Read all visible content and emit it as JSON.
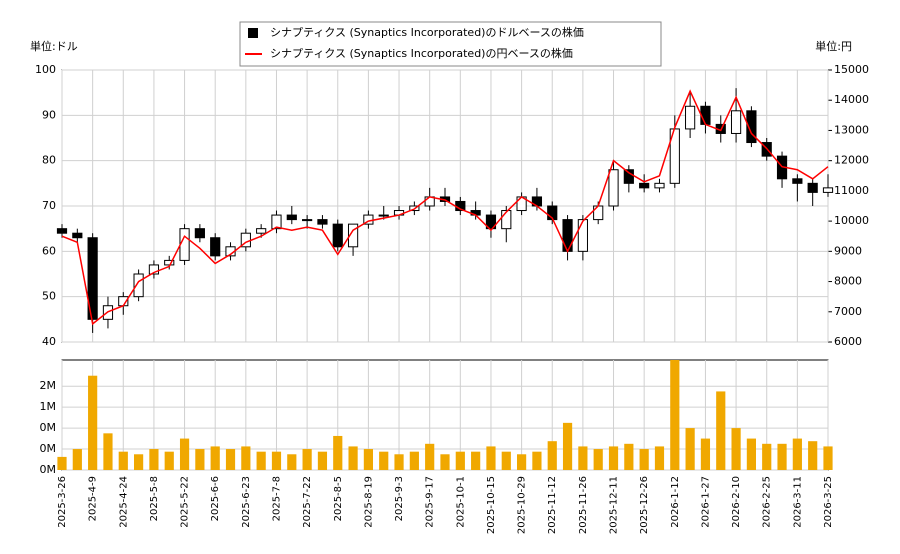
{
  "chart_data": {
    "type": "candlestick",
    "y_unit_label": "単位:ドル",
    "y2_unit_label": "単位:円",
    "categories": [
      "2025-3-26",
      null,
      "2025-4-9",
      null,
      "2025-4-24",
      null,
      "2025-5-8",
      null,
      "2025-5-22",
      null,
      "2025-6-6",
      null,
      "2025-6-23",
      null,
      "2025-7-8",
      null,
      "2025-7-22",
      null,
      "2025-8-5",
      null,
      "2025-8-19",
      null,
      "2025-9-3",
      null,
      "2025-9-17",
      null,
      "2025-10-1",
      null,
      "2025-10-15",
      null,
      "2025-10-29",
      null,
      "2025-11-12",
      null,
      "2025-11-26",
      null,
      "2025-12-11",
      null,
      "2025-12-26",
      null,
      "2026-1-12",
      null,
      "2026-1-27",
      null,
      "2026-2-10",
      null,
      "2026-2-25",
      null,
      "2026-3-11",
      null,
      "2026-3-25"
    ],
    "ylim": [
      40,
      100
    ],
    "yticks": [
      40,
      50,
      60,
      70,
      80,
      90,
      100
    ],
    "y2lim": [
      6000,
      15000
    ],
    "y2ticks": [
      6000,
      7000,
      8000,
      9000,
      10000,
      11000,
      12000,
      13000,
      14000,
      15000
    ],
    "grid": true,
    "series": [
      {
        "name": "シナプティクス (Synaptics Incorporated)のドルベースの株価",
        "color": "#000000",
        "open": [
          65,
          64,
          63,
          45,
          48,
          50,
          55,
          57,
          58,
          65,
          63,
          59,
          61,
          64,
          65,
          68,
          67,
          67,
          66,
          61,
          66,
          68,
          68,
          69,
          70,
          72,
          71,
          69,
          68,
          65,
          69,
          72,
          70,
          67,
          60,
          67,
          70,
          78,
          75,
          74,
          75,
          87,
          92,
          88,
          86,
          91,
          84,
          81,
          76,
          75,
          73
        ],
        "high": [
          66,
          65,
          64,
          50,
          51,
          56,
          58,
          59,
          66,
          66,
          64,
          62,
          65,
          66,
          69,
          70,
          68,
          68,
          67,
          66,
          69,
          70,
          70,
          71,
          74,
          74,
          72,
          71,
          69,
          70,
          73,
          74,
          71,
          68,
          68,
          71,
          80,
          79,
          77,
          76,
          90,
          95,
          93,
          90,
          96,
          92,
          85,
          82,
          77,
          76,
          77
        ],
        "low": [
          63,
          62,
          42,
          43,
          46,
          49,
          54,
          56,
          57,
          62,
          58,
          58,
          60,
          63,
          64,
          66,
          65,
          65,
          60,
          59,
          65,
          67,
          67,
          68,
          69,
          70,
          68,
          67,
          63,
          62,
          68,
          69,
          66,
          58,
          58,
          66,
          69,
          73,
          73,
          73,
          74,
          85,
          86,
          84,
          84,
          83,
          80,
          74,
          71,
          70,
          72
        ],
        "close": [
          64,
          63,
          45,
          48,
          50,
          55,
          57,
          58,
          65,
          63,
          59,
          61,
          64,
          65,
          68,
          67,
          67,
          66,
          61,
          66,
          68,
          68,
          69,
          70,
          72,
          71,
          69,
          68,
          65,
          69,
          72,
          70,
          67,
          60,
          67,
          70,
          78,
          75,
          74,
          75,
          87,
          92,
          88,
          86,
          91,
          84,
          81,
          76,
          75,
          73,
          74
        ]
      },
      {
        "name": "シナプティクス (Synaptics Incorporated)の円ベースの株価",
        "color": "#ff0000",
        "axis": "y2",
        "values": [
          9500,
          9300,
          6600,
          7000,
          7200,
          8000,
          8300,
          8500,
          9500,
          9100,
          8600,
          8900,
          9300,
          9500,
          9800,
          9700,
          9800,
          9700,
          8900,
          9700,
          10000,
          10100,
          10200,
          10400,
          10800,
          10700,
          10400,
          10200,
          9700,
          10300,
          10800,
          10500,
          10100,
          9000,
          10000,
          10500,
          12000,
          11600,
          11300,
          11500,
          13100,
          14300,
          13200,
          13000,
          14100,
          12900,
          12400,
          11800,
          11700,
          11400,
          11800
        ]
      }
    ],
    "volume": {
      "color": "#f0a800",
      "ylim": [
        0,
        2100000
      ],
      "yticks": [
        {
          "value": 0,
          "label": "0M"
        },
        {
          "value": 400000,
          "label": "0M"
        },
        {
          "value": 800000,
          "label": "0M"
        },
        {
          "value": 1200000,
          "label": "1M"
        },
        {
          "value": 1600000,
          "label": "2M"
        }
      ],
      "values": [
        250000,
        400000,
        1800000,
        700000,
        350000,
        300000,
        400000,
        350000,
        600000,
        400000,
        450000,
        400000,
        450000,
        350000,
        350000,
        300000,
        400000,
        350000,
        650000,
        450000,
        400000,
        350000,
        300000,
        350000,
        500000,
        300000,
        350000,
        350000,
        450000,
        350000,
        300000,
        350000,
        550000,
        900000,
        450000,
        400000,
        450000,
        500000,
        400000,
        450000,
        2100000,
        800000,
        600000,
        1500000,
        800000,
        600000,
        500000,
        500000,
        600000,
        550000,
        450000
      ]
    }
  }
}
